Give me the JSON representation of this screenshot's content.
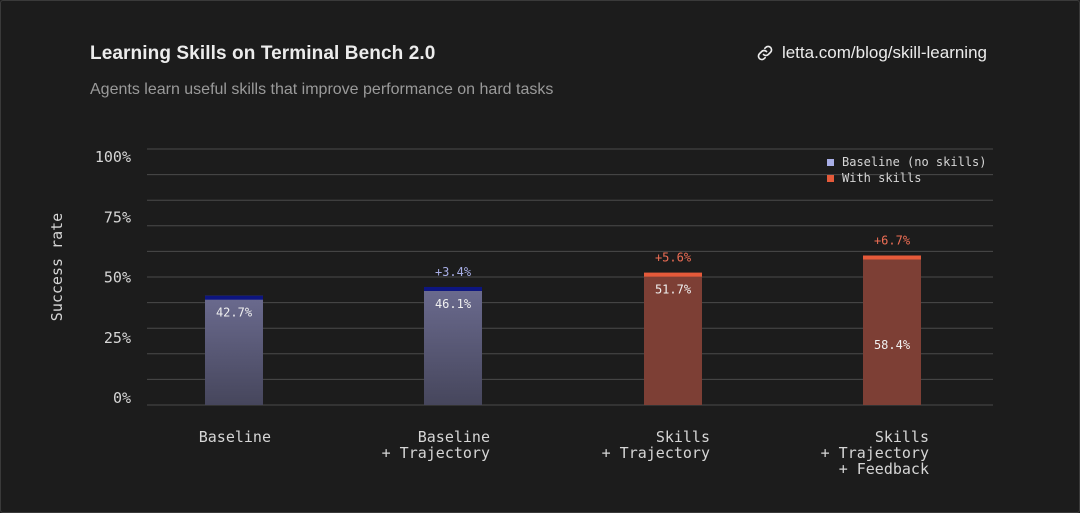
{
  "header": {
    "title": "Learning Skills on Terminal Bench 2.0",
    "subtitle": "Agents learn useful skills that improve performance on hard tasks",
    "link_text": "letta.com/blog/skill-learning",
    "link_icon": "link-icon"
  },
  "colors": {
    "background": "#1c1c1c",
    "gridline": "#4a4a4a",
    "axis_text": "#d6d6d6",
    "baseline_top": "#6b6b8f",
    "baseline_bottom": "#46465c",
    "baseline_cap": "#0d1580",
    "baseline_delta_text": "#a8aee6",
    "skills_bar": "#7d3f35",
    "skills_cap": "#e55a3a",
    "skills_delta_text": "#ef6e55",
    "bar_value_text": "#f0f0f0"
  },
  "chart_data": {
    "type": "bar",
    "ylabel": "Success rate",
    "ylim": [
      0,
      100
    ],
    "y_ticks": [
      "0%",
      "25%",
      "50%",
      "75%",
      "100%"
    ],
    "y_tick_values": [
      0,
      25,
      50,
      75,
      100
    ],
    "grid": true,
    "legend_position": "top-right",
    "legend": [
      {
        "label": "Baseline (no skills)",
        "color": "#a8aee6"
      },
      {
        "label": "With skills",
        "color": "#e55a3a"
      }
    ],
    "categories": [
      [
        "Baseline"
      ],
      [
        "Baseline",
        "+ Trajectory"
      ],
      [
        "Skills",
        "+ Trajectory"
      ],
      [
        "Skills",
        "+ Trajectory",
        "+ Feedback"
      ]
    ],
    "bars": [
      {
        "value": 42.7,
        "label": "42.7%",
        "delta": "",
        "kind": "baseline"
      },
      {
        "value": 46.1,
        "label": "46.1%",
        "delta": "+3.4%",
        "kind": "baseline"
      },
      {
        "value": 51.7,
        "label": "51.7%",
        "delta": "+5.6%",
        "kind": "skills"
      },
      {
        "value": 58.4,
        "label": "58.4%",
        "delta": "+6.7%",
        "kind": "skills"
      }
    ]
  }
}
